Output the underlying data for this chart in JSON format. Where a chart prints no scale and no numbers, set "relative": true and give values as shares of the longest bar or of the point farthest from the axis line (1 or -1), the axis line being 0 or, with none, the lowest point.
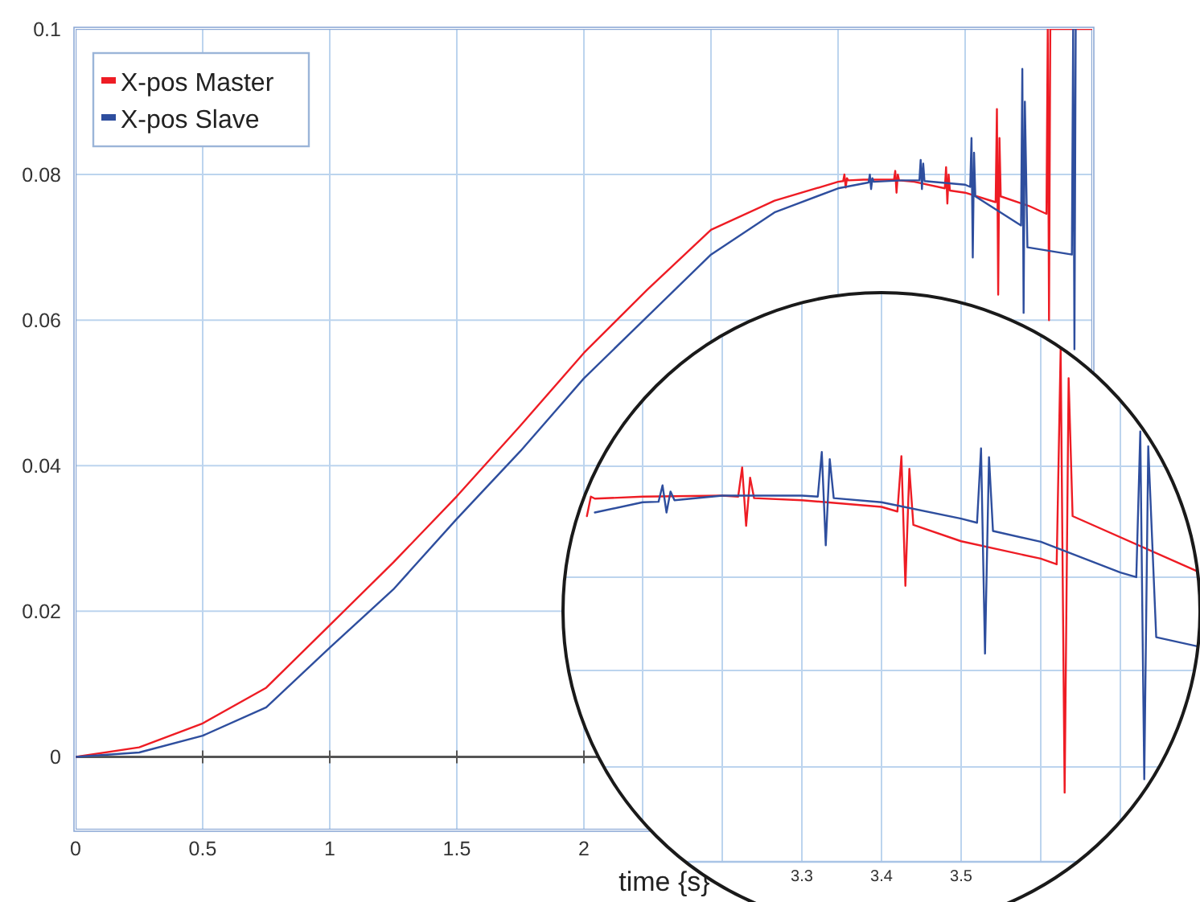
{
  "chart_data": [
    {
      "type": "line",
      "xlabel": "time {s}",
      "xlim": [
        0,
        4
      ],
      "ylim": [
        -0.01,
        0.1
      ],
      "xticks": [
        0,
        0.5,
        1,
        1.5,
        2,
        {
          "value": 2.5,
          "label": null
        },
        {
          "value": 3,
          "label": null
        },
        {
          "value": 3.5,
          "label": null
        },
        {
          "value": 4,
          "label": null
        }
      ],
      "yticks": [
        0,
        0.02,
        0.04,
        0.06,
        0.08,
        0.1
      ],
      "grid": true,
      "legend": "top left",
      "marker": "none",
      "line_style": "solid",
      "ref_lines": [
        {
          "axis": "y",
          "value": 0,
          "color": "#555555"
        }
      ],
      "series": [
        {
          "name": "X-pos Master",
          "color": "#ee1c24",
          "x": [
            0,
            0.25,
            0.5,
            0.75,
            1,
            1.25,
            1.5,
            1.75,
            2,
            2.25,
            2.5,
            2.75,
            3,
            3.02,
            3.025,
            3.03,
            3.035,
            3.04,
            3.1,
            3.22,
            3.225,
            3.23,
            3.235,
            3.24,
            3.3,
            3.42,
            3.425,
            3.43,
            3.435,
            3.44,
            3.5,
            3.62,
            3.625,
            3.63,
            3.635,
            3.64,
            3.75,
            3.82,
            3.825,
            3.83,
            3.835,
            3.85,
            4
          ],
          "values": [
            0,
            0.0013,
            0.0046,
            0.0095,
            0.0181,
            0.0267,
            0.0358,
            0.0455,
            0.0555,
            0.0642,
            0.0724,
            0.0764,
            0.079,
            0.0791,
            0.08,
            0.0782,
            0.0795,
            0.0792,
            0.0793,
            0.0793,
            0.0805,
            0.0775,
            0.08,
            0.0792,
            0.079,
            0.0781,
            0.081,
            0.076,
            0.08,
            0.0778,
            0.0775,
            0.0762,
            0.089,
            0.0635,
            0.085,
            0.077,
            0.0757,
            0.0746,
            0.1,
            0.06,
            0.1,
            0.1,
            0.1
          ]
        },
        {
          "name": "X-pos Slave",
          "color": "#2e4e9e",
          "x": [
            0,
            0.25,
            0.5,
            0.75,
            1,
            1.25,
            1.5,
            1.75,
            2,
            2.25,
            2.5,
            2.75,
            3,
            3.12,
            3.125,
            3.13,
            3.135,
            3.14,
            3.25,
            3.32,
            3.325,
            3.33,
            3.335,
            3.34,
            3.5,
            3.52,
            3.525,
            3.53,
            3.535,
            3.54,
            3.72,
            3.725,
            3.73,
            3.735,
            3.745,
            3.92,
            3.925,
            3.93,
            3.935
          ],
          "values": [
            0,
            0.0006,
            0.0029,
            0.0068,
            0.015,
            0.023,
            0.0327,
            0.042,
            0.052,
            0.0605,
            0.069,
            0.0748,
            0.0781,
            0.0789,
            0.08,
            0.078,
            0.0795,
            0.079,
            0.0792,
            0.0792,
            0.082,
            0.078,
            0.0815,
            0.0791,
            0.0786,
            0.0783,
            0.085,
            0.0686,
            0.083,
            0.077,
            0.073,
            0.0945,
            0.061,
            0.09,
            0.07,
            0.069,
            0.1,
            0.056,
            0.1
          ]
        }
      ]
    },
    {
      "type": "line",
      "xlim": [
        3.0,
        3.8
      ],
      "relative": true,
      "tick_labels": "x",
      "grid": true,
      "marker": "none",
      "line_style": "solid",
      "xticks": [
        {
          "value": 3.1,
          "label": null
        },
        {
          "value": 3.2,
          "label": null
        },
        3.3,
        3.4,
        3.5,
        {
          "value": 3.6,
          "label": null
        },
        {
          "value": 3.7,
          "label": null
        }
      ],
      "series": [
        {
          "color": "#ee1c24",
          "x": [
            3.03,
            3.035,
            3.04,
            3.1,
            3.2,
            3.22,
            3.225,
            3.23,
            3.235,
            3.24,
            3.3,
            3.4,
            3.42,
            3.425,
            3.43,
            3.435,
            3.44,
            3.5,
            3.6,
            3.62,
            3.625,
            3.63,
            3.635,
            3.64,
            3.8
          ],
          "values": [
            0.674,
            0.712,
            0.708,
            0.712,
            0.714,
            0.712,
            0.769,
            0.655,
            0.749,
            0.709,
            0.705,
            0.692,
            0.683,
            0.791,
            0.538,
            0.766,
            0.657,
            0.625,
            0.591,
            0.58,
            1,
            0.135,
            0.943,
            0.674,
            0.564
          ]
        },
        {
          "color": "#2e4e9e",
          "x": [
            3.04,
            3.1,
            3.12,
            3.125,
            3.13,
            3.135,
            3.14,
            3.2,
            3.3,
            3.32,
            3.325,
            3.33,
            3.335,
            3.34,
            3.4,
            3.5,
            3.52,
            3.525,
            3.53,
            3.535,
            3.54,
            3.6,
            3.7,
            3.72,
            3.725,
            3.73,
            3.735,
            3.745,
            3.8
          ],
          "values": [
            0.681,
            0.701,
            0.702,
            0.734,
            0.681,
            0.722,
            0.705,
            0.714,
            0.714,
            0.712,
            0.799,
            0.617,
            0.785,
            0.709,
            0.701,
            0.669,
            0.661,
            0.806,
            0.406,
            0.789,
            0.645,
            0.624,
            0.564,
            0.555,
            0.839,
            0.161,
            0.81,
            0.438,
            0.419
          ]
        }
      ]
    }
  ]
}
